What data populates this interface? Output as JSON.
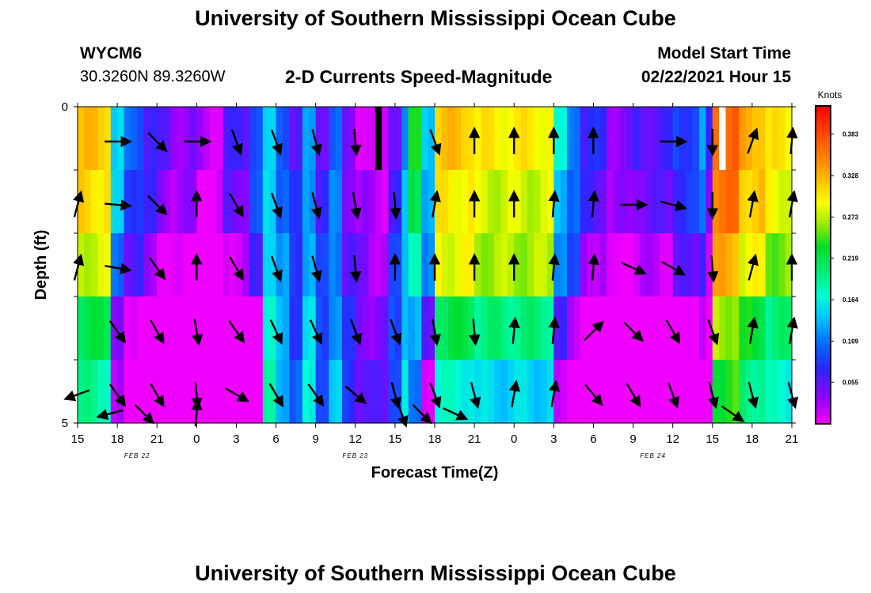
{
  "header": {
    "title_top": "University of Southern Mississippi Ocean Cube",
    "title_bottom": "University of Southern Mississippi Ocean Cube",
    "station_id": "WYCM6",
    "station_coords": "30.3260N 89.3260W",
    "model_start_label": "Model Start Time",
    "model_start_value": "02/22/2021 Hour 15"
  },
  "chart_data": {
    "type": "heatmap",
    "title": "2-D Currents Speed-Magnitude",
    "xlabel": "Forecast Time(Z)",
    "ylabel": "Depth (ft)",
    "y_ticks": [
      "0",
      "5"
    ],
    "y_range": [
      0,
      5
    ],
    "x_ticks": [
      "15",
      "18",
      "21",
      "0",
      "3",
      "6",
      "9",
      "12",
      "15",
      "18",
      "21",
      "0",
      "3",
      "6",
      "9",
      "12",
      "15",
      "18",
      "21"
    ],
    "x_range_hours": [
      0,
      54
    ],
    "day_labels": [
      {
        "text": "FEB  22",
        "hour": 4.5
      },
      {
        "text": "FEB  23",
        "hour": 21
      },
      {
        "text": "FEB  24",
        "hour": 43.5
      }
    ],
    "colorbar": {
      "units": "Knots",
      "min": 0,
      "max": 0.42,
      "tick_values": [
        0.383,
        0.328,
        0.273,
        0.219,
        0.164,
        0.109,
        0.055
      ],
      "tick_labels": [
        "0.383",
        "0.328",
        "0.273",
        "0.219",
        "0.164",
        "0.109",
        "0.055"
      ]
    },
    "layers": 5,
    "hours_per_column": 0.5,
    "speed_segments": [
      [
        0,
        2.5,
        0.32
      ],
      [
        2.5,
        3.5,
        0.15
      ],
      [
        3.5,
        5,
        0.1
      ],
      [
        5,
        6,
        0.07
      ],
      [
        6,
        7,
        0.05
      ],
      [
        7,
        9,
        0.04
      ],
      [
        9,
        11,
        0.02
      ],
      [
        11,
        13,
        0.06
      ],
      [
        13,
        14,
        0.1
      ],
      [
        14,
        15,
        0.14
      ],
      [
        15,
        16,
        0.1
      ],
      [
        16,
        17,
        0.06
      ],
      [
        17,
        18,
        0.12
      ],
      [
        18,
        19,
        0.06
      ],
      [
        19,
        20,
        0.1
      ],
      [
        20,
        21,
        0.04
      ],
      [
        21,
        22,
        0.02
      ],
      [
        22,
        23.5,
        0.01
      ],
      [
        23.5,
        24.5,
        0.06
      ],
      [
        24.5,
        25,
        0.12
      ],
      [
        25,
        26,
        0.23
      ],
      [
        26,
        27,
        0.15
      ],
      [
        27,
        30,
        0.32
      ],
      [
        30,
        36,
        0.3
      ],
      [
        36,
        37,
        0.16
      ],
      [
        37,
        38,
        0.12
      ],
      [
        38,
        40,
        0.07
      ],
      [
        40,
        42,
        0.04
      ],
      [
        42,
        45,
        0.06
      ],
      [
        45,
        47,
        0.09
      ],
      [
        47,
        47.5,
        0.12
      ],
      [
        47.5,
        48,
        0.06
      ],
      [
        48,
        50,
        0.37
      ],
      [
        50,
        52,
        0.33
      ],
      [
        52,
        54,
        0.3
      ]
    ],
    "layer_offsets": [
      0.0,
      -0.01,
      -0.04,
      -0.1,
      -0.13
    ],
    "gradient_zones": [
      {
        "hours": [
          27,
          37
        ],
        "layer_offsets": [
          0.0,
          -0.02,
          -0.03,
          -0.1,
          -0.15
        ]
      },
      {
        "hours": [
          14,
          25
        ],
        "layer_offsets": [
          0.0,
          0.01,
          0.02,
          0.03,
          0.04
        ]
      }
    ],
    "no_data_cells": [
      {
        "hour": 22.5,
        "layer": 0,
        "kind": "black"
      },
      {
        "hour": 48.5,
        "layer": 0,
        "kind": "white"
      }
    ],
    "vector_hours": [
      0,
      3,
      6,
      9,
      12,
      15,
      18,
      21,
      24,
      27,
      30,
      33,
      36,
      39,
      42,
      45,
      48,
      51,
      54
    ],
    "vectors_deg": [
      [
        null,
        90,
        135,
        90,
        160,
        160,
        165,
        175,
        null,
        160,
        0,
        0,
        0,
        0,
        null,
        90,
        180,
        20,
        5
      ],
      [
        15,
        95,
        135,
        0,
        150,
        160,
        165,
        170,
        175,
        10,
        0,
        0,
        5,
        5,
        90,
        105,
        180,
        10,
        10
      ],
      [
        15,
        100,
        145,
        0,
        150,
        160,
        165,
        175,
        0,
        0,
        0,
        0,
        5,
        5,
        115,
        120,
        175,
        15,
        0
      ],
      [
        null,
        145,
        150,
        170,
        145,
        155,
        155,
        160,
        160,
        170,
        175,
        5,
        5,
        45,
        135,
        150,
        160,
        10,
        10
      ],
      [
        250,
        145,
        150,
        175,
        120,
        150,
        145,
        130,
        165,
        160,
        165,
        10,
        10,
        140,
        150,
        160,
        165,
        165,
        165
      ]
    ],
    "extra_vectors": [
      {
        "hour": 2.5,
        "layer": 5,
        "deg": 255
      },
      {
        "hour": 5,
        "layer": 5,
        "deg": 135
      },
      {
        "hour": 9,
        "layer": 5,
        "deg": 5
      },
      {
        "hour": 24.5,
        "layer": 5,
        "deg": 160
      },
      {
        "hour": 26,
        "layer": 5,
        "deg": 135
      },
      {
        "hour": 28.5,
        "layer": 5,
        "deg": 115
      },
      {
        "hour": 49.5,
        "layer": 5,
        "deg": 125
      }
    ]
  }
}
